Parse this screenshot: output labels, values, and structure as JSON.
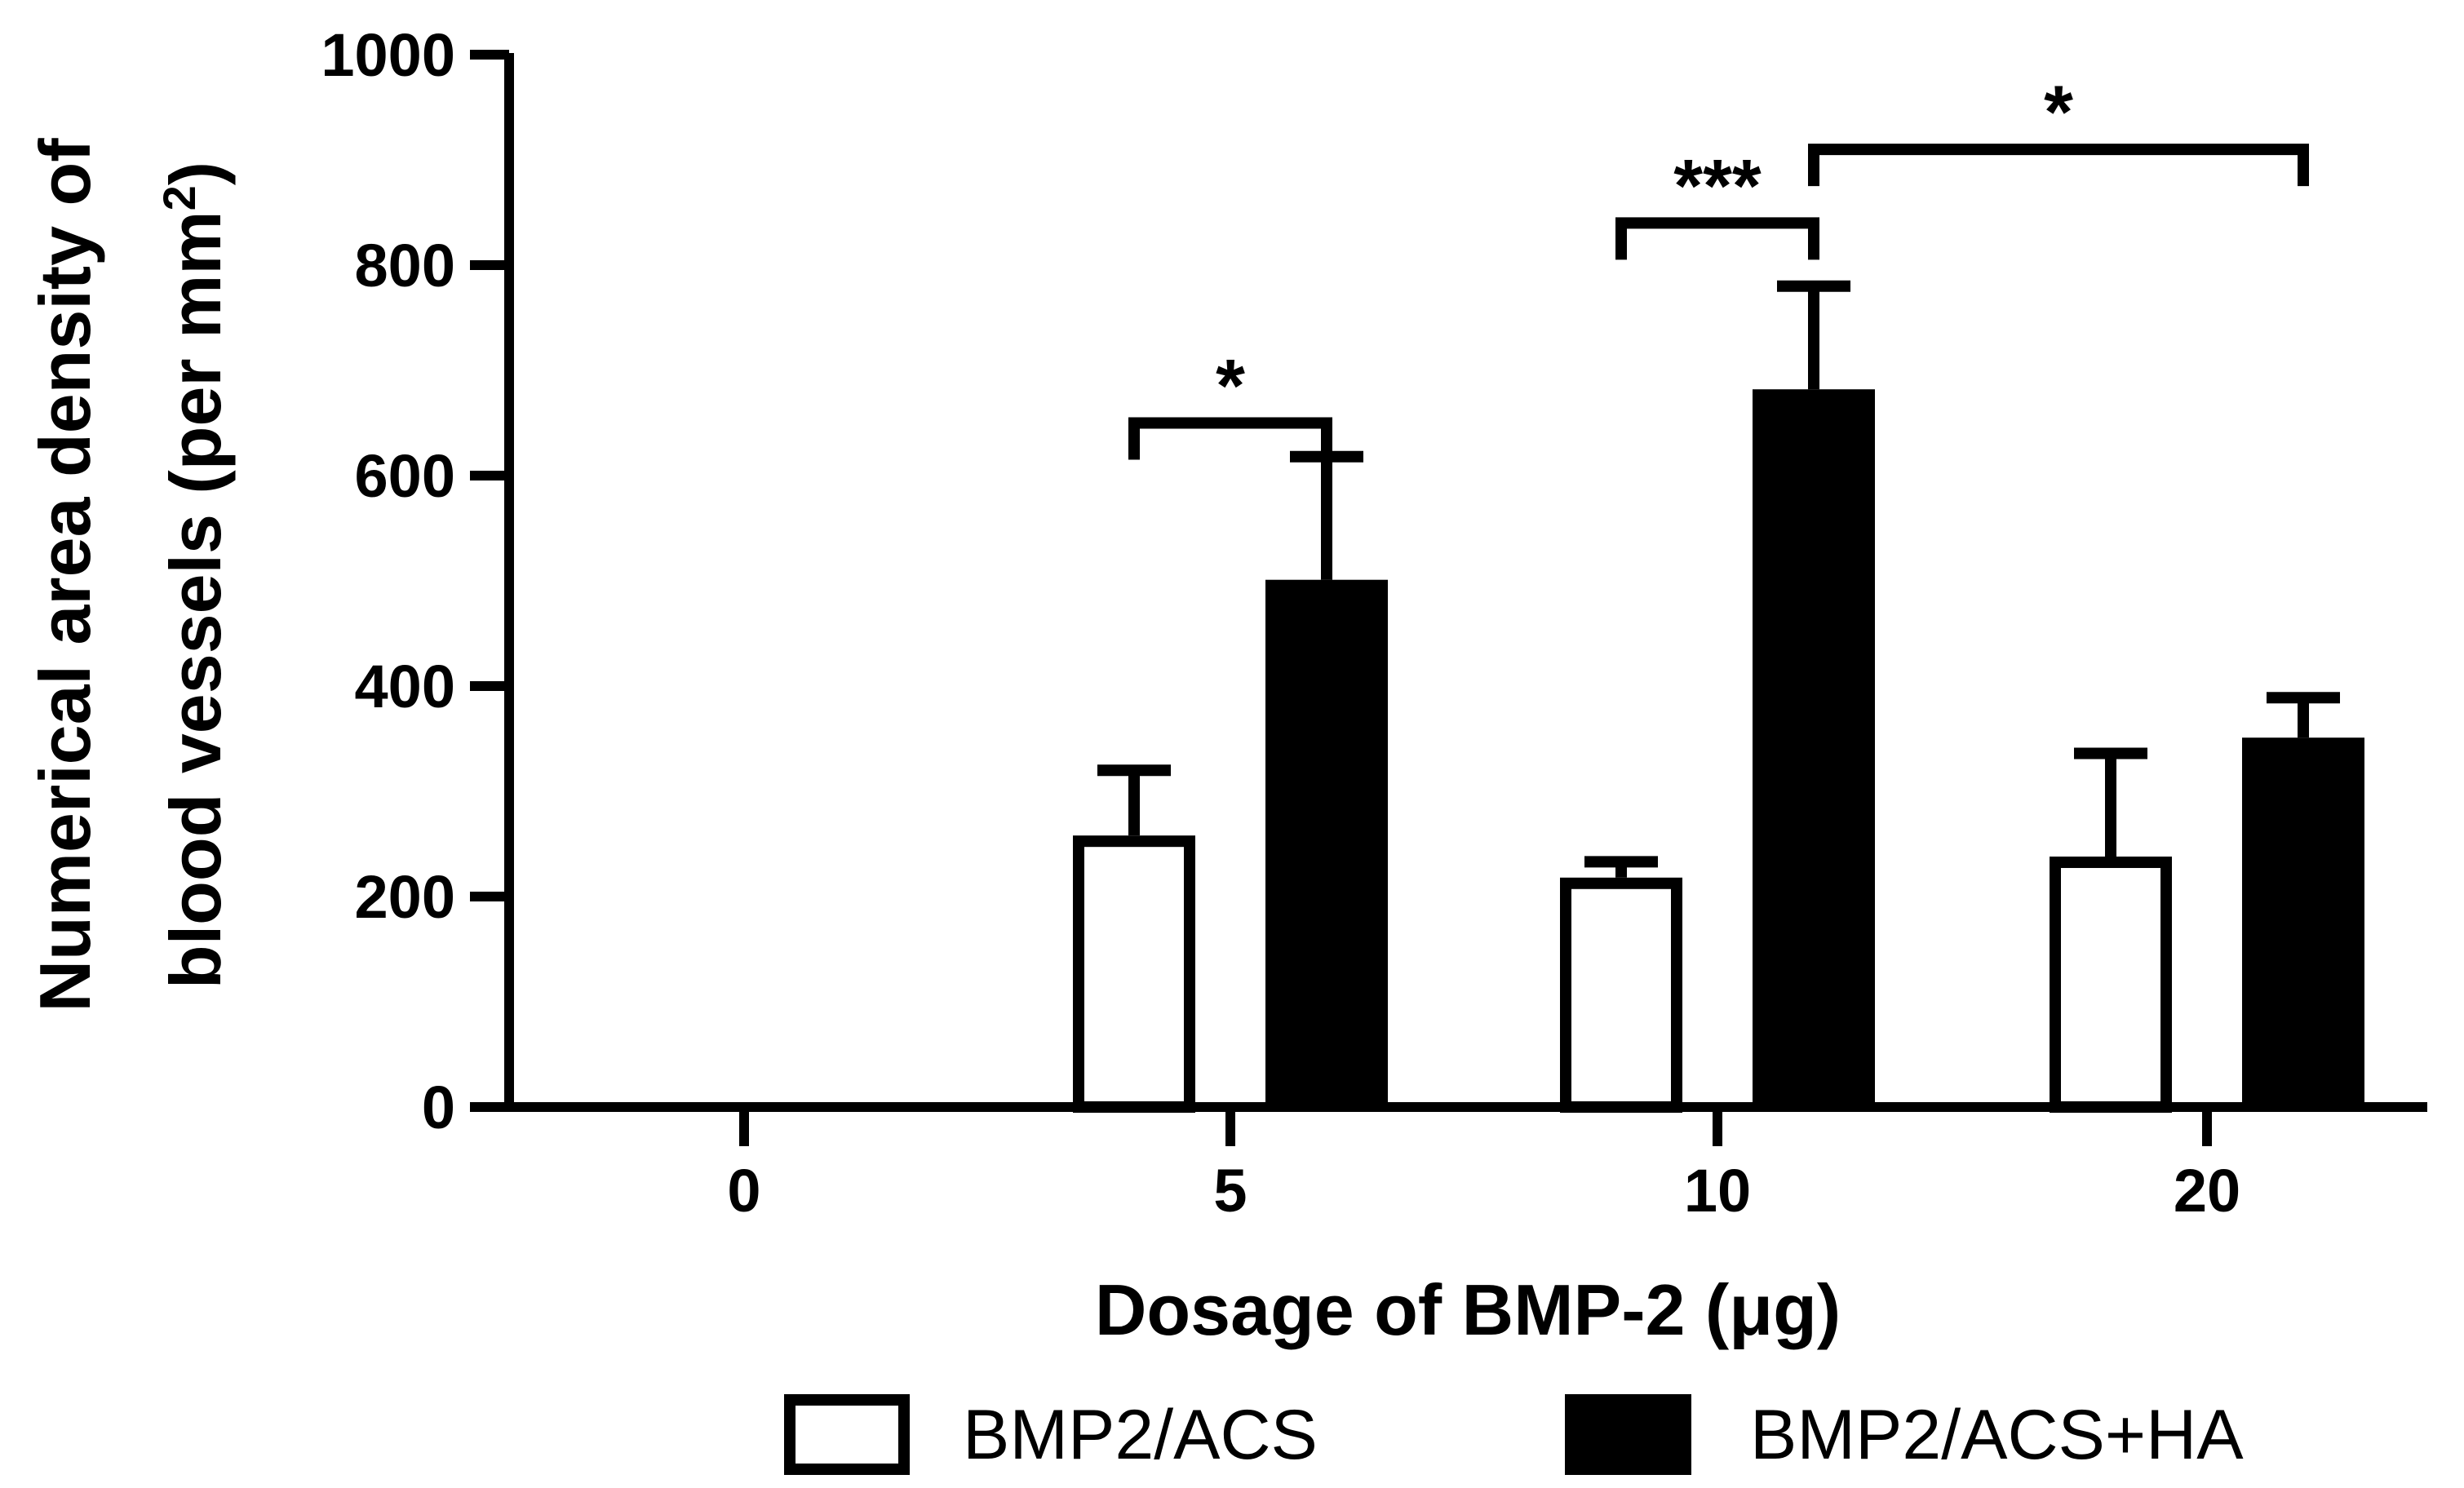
{
  "chart_data": {
    "type": "bar",
    "categories": [
      "0",
      "5",
      "10",
      "20"
    ],
    "xlabel": "Dosage of BMP-2 (μg)",
    "ylabel_line1": "Numerical area density of",
    "ylabel_line2": "blood vessels (per mm",
    "ylabel_superscript": "2",
    "ylabel_close": ")",
    "ylim": [
      0,
      1000
    ],
    "yticks": [
      0,
      200,
      400,
      600,
      800,
      1000
    ],
    "grid": false,
    "legend_position": "bottom",
    "series": [
      {
        "name": "BMP2/ACS",
        "fill": "#ffffff",
        "stroke": "#000000",
        "values": [
          0,
          258,
          218,
          238
        ],
        "errors": [
          0,
          62,
          15,
          98
        ]
      },
      {
        "name": "BMP2/ACS+HA",
        "fill": "#000000",
        "stroke": "#000000",
        "values": [
          0,
          501,
          682,
          351
        ],
        "errors": [
          0,
          117,
          98,
          38
        ]
      }
    ],
    "significance": [
      {
        "label": "*",
        "from": {
          "category": 1,
          "series": 0
        },
        "to": {
          "category": 1,
          "series": 1
        },
        "level": 650
      },
      {
        "label": "***",
        "from": {
          "category": 2,
          "series": 0
        },
        "to": {
          "category": 2,
          "series": 1
        },
        "level": 840
      },
      {
        "label": "*",
        "from": {
          "category": 2,
          "series": 1
        },
        "to": {
          "category": 3,
          "series": 1
        },
        "level": 910
      }
    ]
  }
}
